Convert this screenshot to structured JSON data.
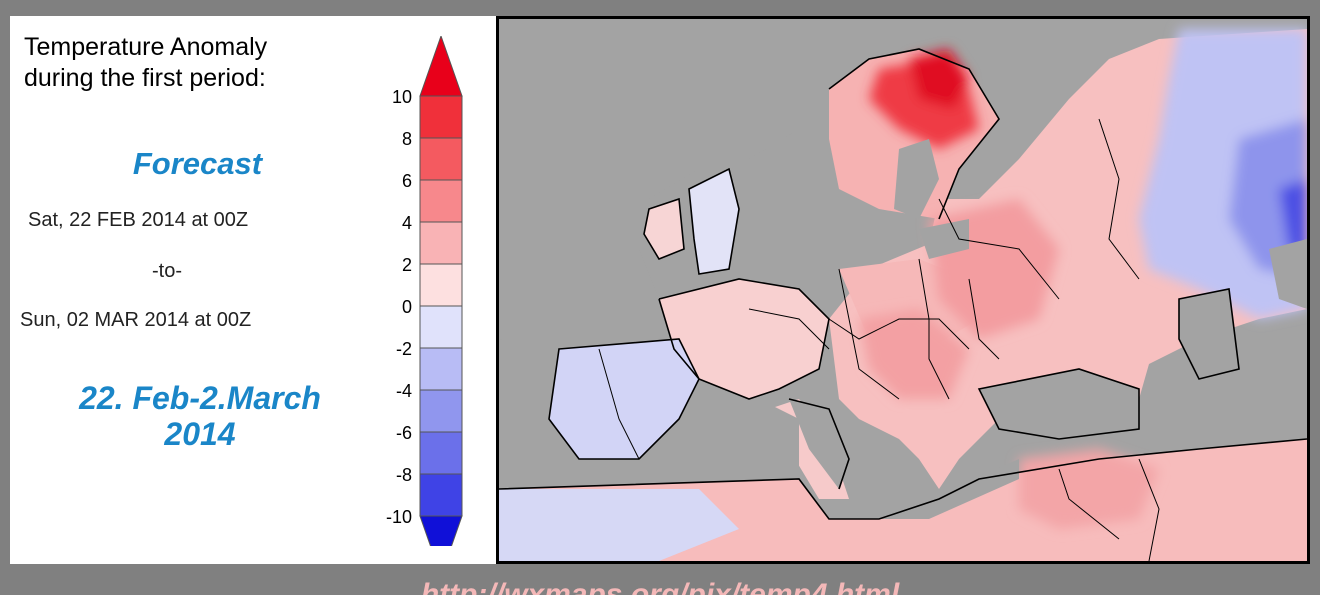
{
  "heading": {
    "line1": "Temperature Anomaly",
    "line2": "during the first period:"
  },
  "forecast_label": "Forecast",
  "period": {
    "from": "Sat, 22 FEB 2014 at 00Z",
    "to": "-to-",
    "until": "Sun, 02 MAR 2014 at 00Z"
  },
  "dates_note": {
    "line1": "22. Feb-2.March",
    "line2": "2014"
  },
  "legend": {
    "ticks": [
      "10",
      "8",
      "6",
      "4",
      "2",
      "0",
      "-2",
      "-4",
      "-6",
      "-8",
      "-10"
    ],
    "warm_colors": [
      "#e8001a",
      "#f0303a",
      "#f45a60",
      "#f7888c",
      "#f9b3b5",
      "#fde0e0"
    ],
    "cold_colors": [
      "#e0e2fb",
      "#b8bcf5",
      "#9096ee",
      "#6b70ea",
      "#3f43e6",
      "#1010d8"
    ]
  },
  "map": {
    "sea_color": "#a3a3a3",
    "background_warm": "#f7c2c2",
    "background_cold": "#c9cdf6"
  },
  "source_url": "http://wxmaps.org/pix/temp4.html"
}
